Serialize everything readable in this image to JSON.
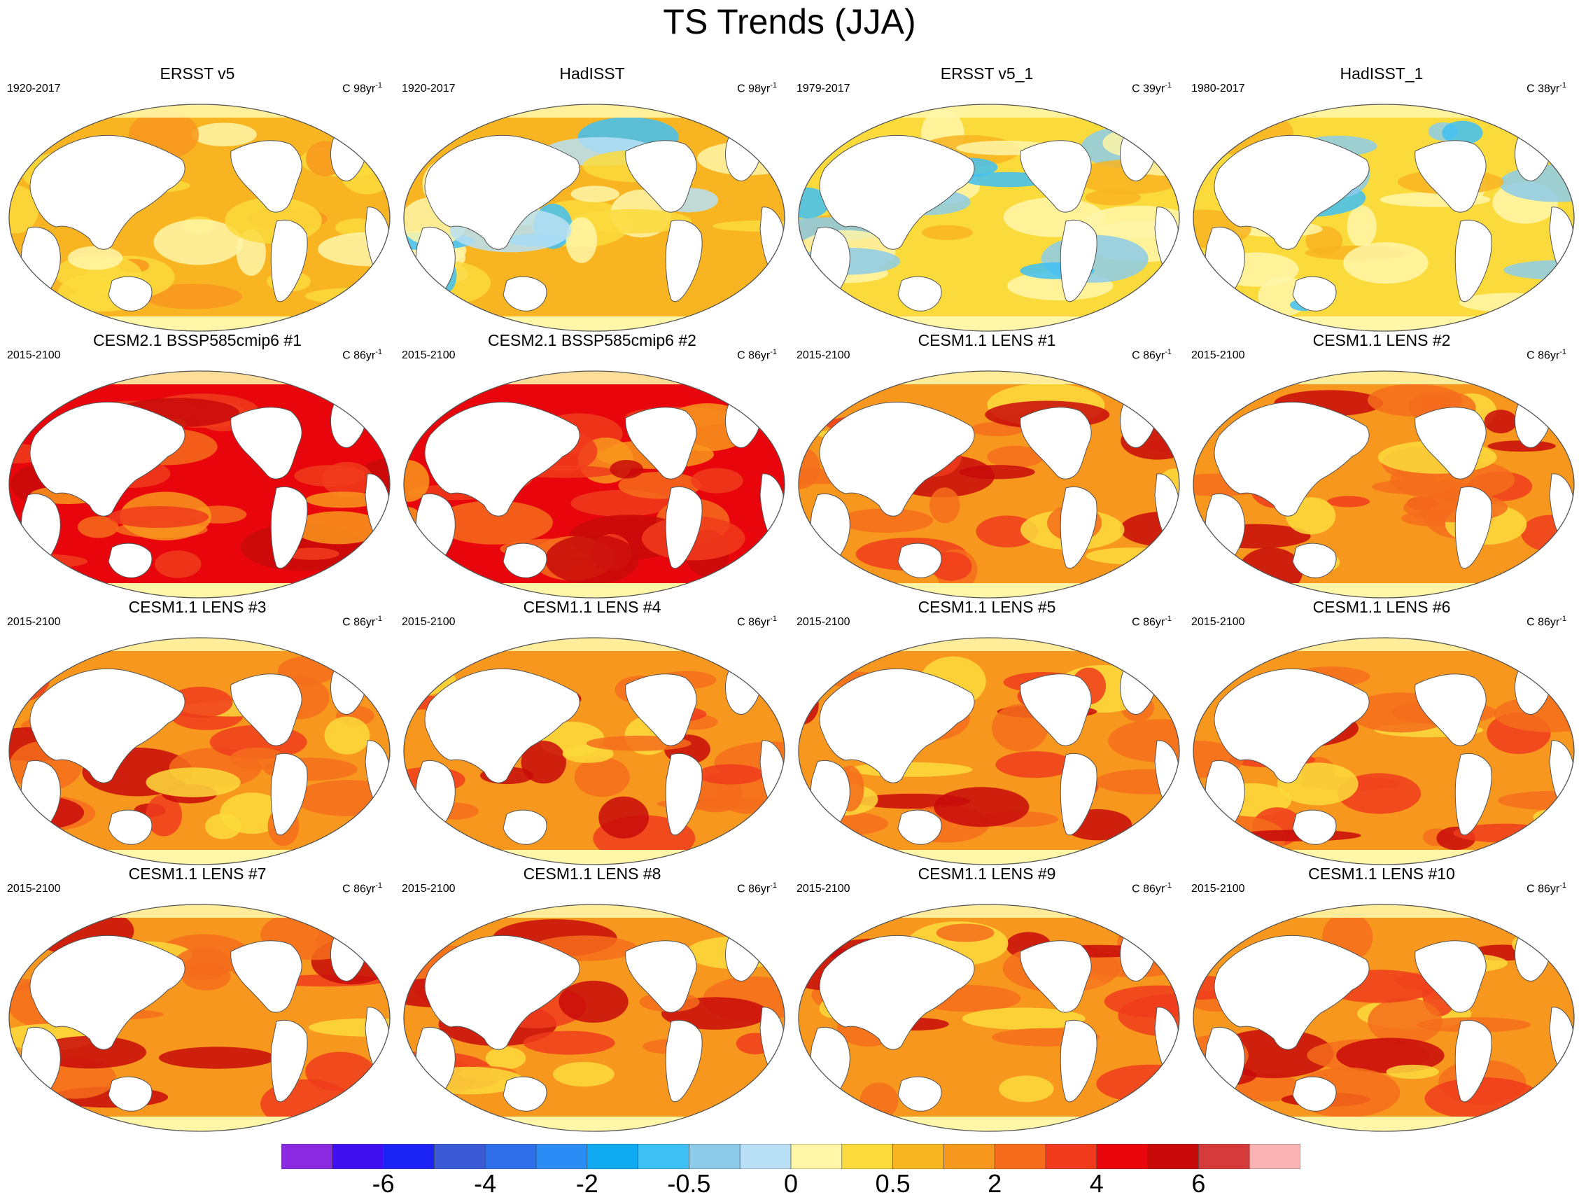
{
  "title": "TS Trends (JJA)",
  "panels": [
    {
      "title": "ERSST v5",
      "period": "1920-2017",
      "units": "C 98yr",
      "units_sup": "-1",
      "scheme": "obs-warm"
    },
    {
      "title": "HadISST",
      "period": "1920-2017",
      "units": "C 98yr",
      "units_sup": "-1",
      "scheme": "obs-mixed"
    },
    {
      "title": "ERSST v5_1",
      "period": "1979-2017",
      "units": "C 39yr",
      "units_sup": "-1",
      "scheme": "obs-cool"
    },
    {
      "title": "HadISST_1",
      "period": "1980-2017",
      "units": "C 38yr",
      "units_sup": "-1",
      "scheme": "obs-cool"
    },
    {
      "title": "CESM2.1 BSSP585cmip6 #1",
      "period": "2015-2100",
      "units": "C 86yr",
      "units_sup": "-1",
      "scheme": "cesm2"
    },
    {
      "title": "CESM2.1 BSSP585cmip6 #2",
      "period": "2015-2100",
      "units": "C 86yr",
      "units_sup": "-1",
      "scheme": "cesm2"
    },
    {
      "title": "CESM1.1 LENS #1",
      "period": "2015-2100",
      "units": "C 86yr",
      "units_sup": "-1",
      "scheme": "lens"
    },
    {
      "title": "CESM1.1 LENS #2",
      "period": "2015-2100",
      "units": "C 86yr",
      "units_sup": "-1",
      "scheme": "lens"
    },
    {
      "title": "CESM1.1 LENS #3",
      "period": "2015-2100",
      "units": "C 86yr",
      "units_sup": "-1",
      "scheme": "lens"
    },
    {
      "title": "CESM1.1 LENS #4",
      "period": "2015-2100",
      "units": "C 86yr",
      "units_sup": "-1",
      "scheme": "lens"
    },
    {
      "title": "CESM1.1 LENS #5",
      "period": "2015-2100",
      "units": "C 86yr",
      "units_sup": "-1",
      "scheme": "lens"
    },
    {
      "title": "CESM1.1 LENS #6",
      "period": "2015-2100",
      "units": "C 86yr",
      "units_sup": "-1",
      "scheme": "lens"
    },
    {
      "title": "CESM1.1 LENS #7",
      "period": "2015-2100",
      "units": "C 86yr",
      "units_sup": "-1",
      "scheme": "lens"
    },
    {
      "title": "CESM1.1 LENS #8",
      "period": "2015-2100",
      "units": "C 86yr",
      "units_sup": "-1",
      "scheme": "lens"
    },
    {
      "title": "CESM1.1 LENS #9",
      "period": "2015-2100",
      "units": "C 86yr",
      "units_sup": "-1",
      "scheme": "lens"
    },
    {
      "title": "CESM1.1 LENS #10",
      "period": "2015-2100",
      "units": "C 86yr",
      "units_sup": "-1",
      "scheme": "lens"
    }
  ],
  "colorbar": {
    "colors": [
      "#8a2be2",
      "#3f0ff0",
      "#1c24f5",
      "#3a5ad8",
      "#2f6fe8",
      "#2a8cf5",
      "#10aaf2",
      "#3fc0f5",
      "#8ccbea",
      "#b9e0f5",
      "#fff6a8",
      "#fbdb3c",
      "#f8b421",
      "#f8971d",
      "#f56d1c",
      "#f03c1c",
      "#e8050c",
      "#c80a0a",
      "#d63b3b",
      "#fbb4b4"
    ],
    "labels": [
      "-6",
      "-4",
      "-2",
      "-0.5",
      "0",
      "0.5",
      "2",
      "4",
      "6"
    ]
  },
  "schemes": {
    "obs-warm": {
      "base": "#f8b421",
      "a": "#fbdb3c",
      "b": "#fff6a8",
      "c": "#f8971d",
      "d": "#fbdb3c",
      "pole": "#fff6a8"
    },
    "obs-mixed": {
      "base": "#f8b421",
      "a": "#fff6a8",
      "b": "#b9e0f5",
      "c": "#fbdb3c",
      "d": "#3fc0f5",
      "pole": "#fff6a8"
    },
    "obs-cool": {
      "base": "#fbdb3c",
      "a": "#fff6a8",
      "b": "#8ccbea",
      "c": "#f8b421",
      "d": "#3fc0f5",
      "pole": "#fff6a8"
    },
    "cesm2": {
      "base": "#e8050c",
      "a": "#f03c1c",
      "b": "#c80a0a",
      "c": "#f56d1c",
      "d": "#f8971d",
      "pole": "#fff6a8"
    },
    "lens": {
      "base": "#f8971d",
      "a": "#f56d1c",
      "b": "#f03c1c",
      "c": "#c80a0a",
      "d": "#fbdb3c",
      "pole": "#fff6a8"
    }
  }
}
